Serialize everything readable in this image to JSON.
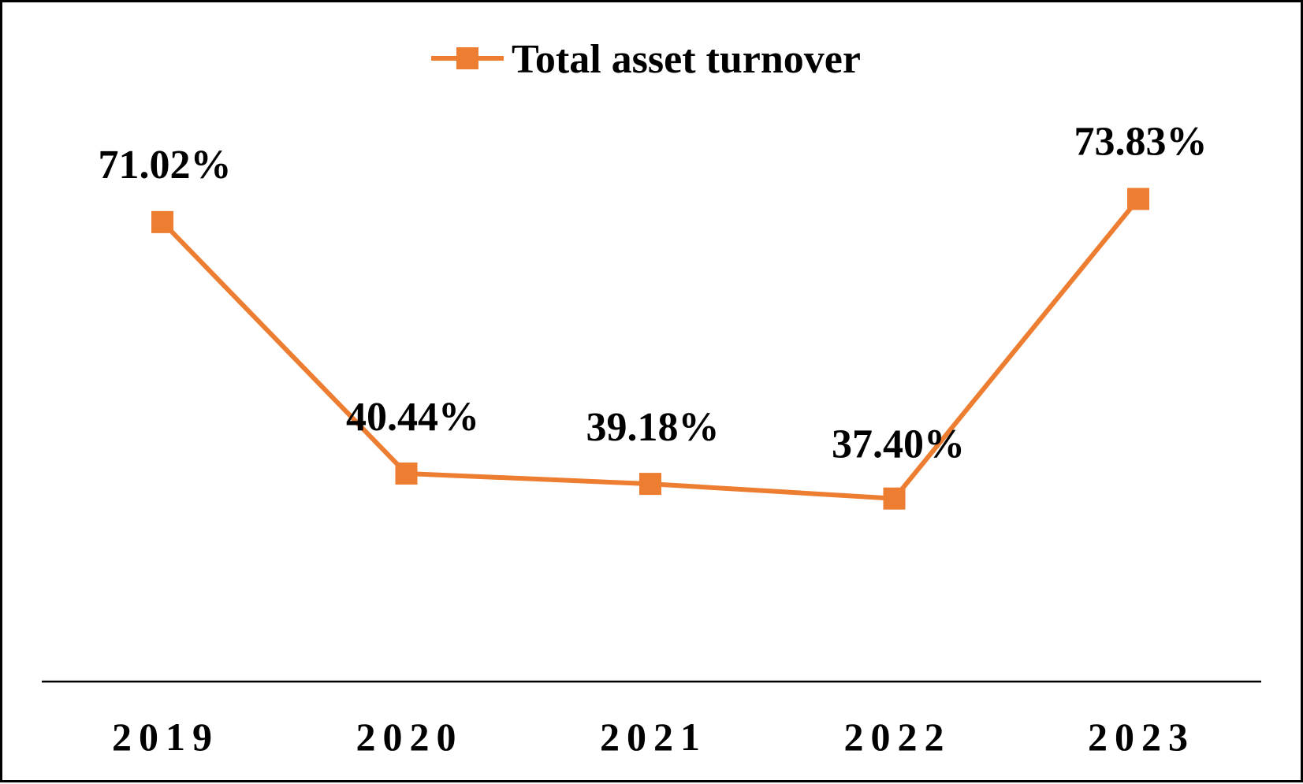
{
  "chart_data": {
    "type": "line",
    "categories": [
      "2019",
      "2020",
      "2021",
      "2022",
      "2023"
    ],
    "series": [
      {
        "name": "Total asset turnover",
        "values": [
          71.02,
          40.44,
          39.18,
          37.4,
          73.83
        ],
        "labels": [
          "71.02%",
          "40.44%",
          "39.18%",
          "37.40%",
          "73.83%"
        ],
        "color": "#ED7D31",
        "marker": "square"
      }
    ],
    "ylim": [
      0,
      100
    ],
    "grid": false,
    "legend_position": "top-center"
  }
}
